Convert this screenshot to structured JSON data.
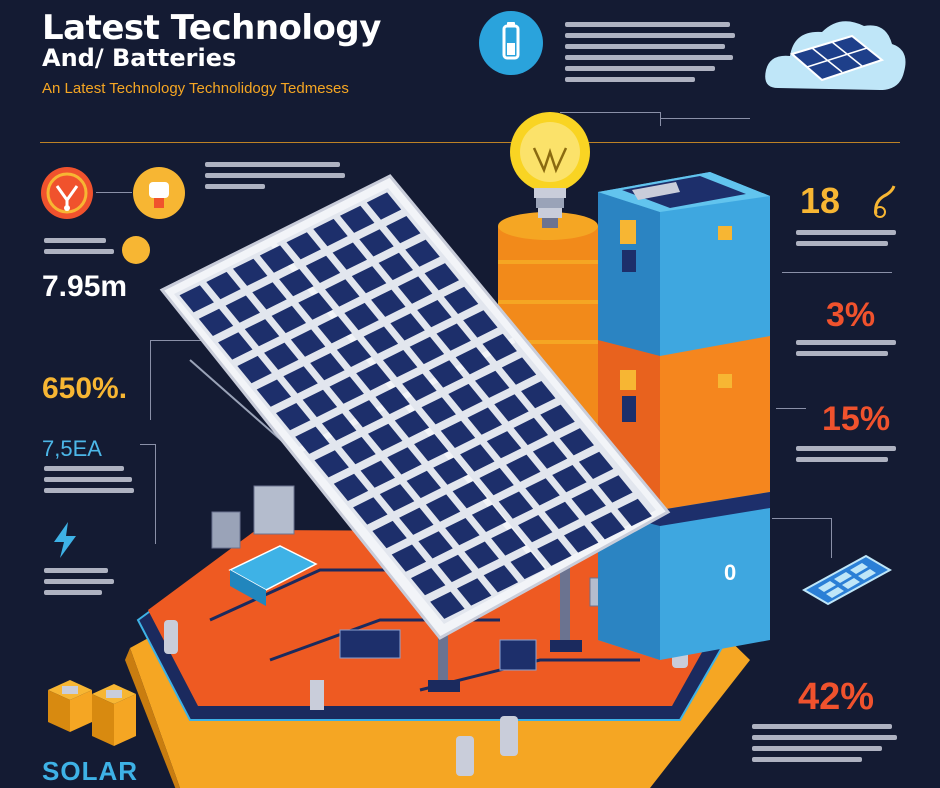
{
  "header": {
    "title_line1": "Latest Technology",
    "title_line2": "And/ Batteries",
    "subtitle": "An Latest Technology Technolidogy Tedmeses"
  },
  "stats": {
    "left_distance": "7.95m",
    "left_percent": "650%.",
    "left_current": "7,5EA",
    "right_top": "18",
    "right_mid1": "3%",
    "right_mid2": "15%",
    "right_bottom": "42%",
    "battery_label": "0"
  },
  "footer": {
    "label": "SOLAR"
  },
  "colors": {
    "background": "#141b33",
    "accent_orange": "#f0522d",
    "accent_yellow": "#f7b633",
    "accent_blue": "#3eb2e6",
    "panel_cell": "#1d2f6b"
  },
  "icons": [
    "battery-icon",
    "cloud-solar-icon",
    "lightbulb-icon",
    "lightning-icon",
    "sun-icon",
    "solar-cell-icon"
  ]
}
